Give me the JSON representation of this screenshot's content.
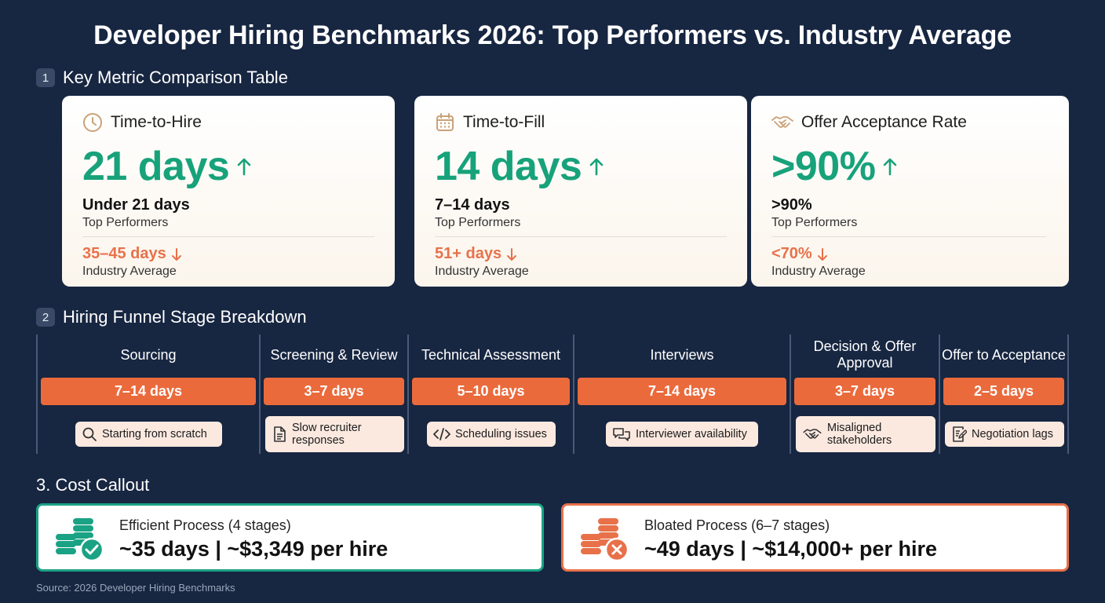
{
  "title": "Developer Hiring Benchmarks 2026: Top Performers vs. Industry Average",
  "section1": {
    "number": "1",
    "heading": "Key Metric Comparison Table"
  },
  "metrics": [
    {
      "icon": "clock-icon",
      "title": "Time-to-Hire",
      "big": "21 days",
      "top_value": "Under 21 days",
      "top_label": "Top Performers",
      "industry_value": "35–45 days",
      "industry_label": "Industry Average"
    },
    {
      "icon": "calendar-icon",
      "title": "Time-to-Fill",
      "big": "14 days",
      "top_value": "7–14 days",
      "top_label": "Top Performers",
      "industry_value": "51+ days",
      "industry_label": "Industry Average"
    },
    {
      "icon": "handshake-icon",
      "title": "Offer Acceptance Rate",
      "big": ">90%",
      "top_value": ">90%",
      "top_label": "Top Performers",
      "industry_value": "<70%",
      "industry_label": "Industry Average"
    }
  ],
  "section2": {
    "number": "2",
    "heading": "Hiring Funnel Stage Breakdown"
  },
  "stages": [
    {
      "title": "Sourcing",
      "duration": "7–14 days",
      "issue_icon": "search-icon",
      "issue": "Starting from scratch"
    },
    {
      "title": "Screening & Review",
      "duration": "3–7 days",
      "issue_icon": "document-icon",
      "issue": "Slow recruiter responses"
    },
    {
      "title": "Technical Assessment",
      "duration": "5–10 days",
      "issue_icon": "code-icon",
      "issue": "Scheduling issues"
    },
    {
      "title": "Interviews",
      "duration": "7–14 days",
      "issue_icon": "chat-icon",
      "issue": "Interviewer availability"
    },
    {
      "title": "Decision & Offer Approval",
      "duration": "3–7 days",
      "issue_icon": "handshake-icon",
      "issue": "Misaligned stakeholders"
    },
    {
      "title": "Offer to Acceptance",
      "duration": "2–5 days",
      "issue_icon": "edit-doc-icon",
      "issue": "Negotiation lags"
    }
  ],
  "section3": {
    "heading": "3. Cost Callout"
  },
  "cost": {
    "efficient": {
      "label": "Efficient Process (4 stages)",
      "value": "~35 days | ~$3,349 per hire",
      "color": "#1aa284",
      "icon": "coins-check-icon"
    },
    "bloated": {
      "label": "Bloated Process (6–7 stages)",
      "value": "~49 days | ~$14,000+ per hire",
      "color": "#e8714a",
      "icon": "coins-x-icon"
    }
  },
  "source": "Source: 2026 Developer Hiring Benchmarks",
  "colors": {
    "background": "#172641",
    "good": "#17a27a",
    "bad": "#e8714a",
    "bar": "#ea6a3c"
  }
}
